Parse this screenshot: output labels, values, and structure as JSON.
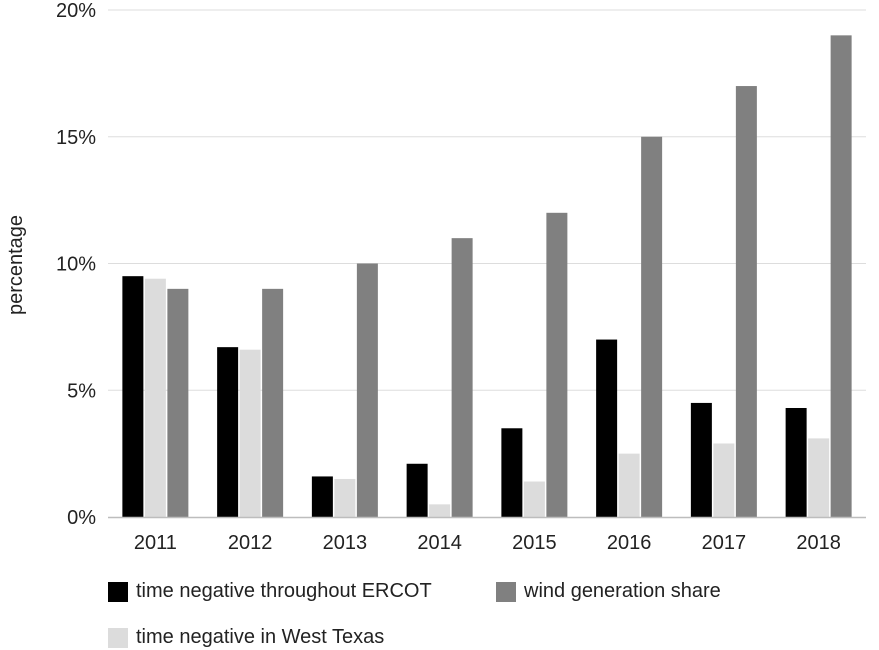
{
  "chart_data": {
    "type": "bar",
    "categories": [
      "2011",
      "2012",
      "2013",
      "2014",
      "2015",
      "2016",
      "2017",
      "2018"
    ],
    "series": [
      {
        "name": "time negative throughout ERCOT",
        "color": "#000000",
        "values": [
          9.5,
          6.7,
          1.6,
          2.1,
          3.5,
          7.0,
          4.5,
          4.3
        ]
      },
      {
        "name": "time negative in West Texas",
        "color": "#dcdcdc",
        "values": [
          9.4,
          6.6,
          1.5,
          0.5,
          1.4,
          2.5,
          2.9,
          3.1
        ]
      },
      {
        "name": "wind generation share",
        "color": "#808080",
        "values": [
          9.0,
          9.0,
          10.0,
          11.0,
          12.0,
          15.0,
          17.0,
          19.0
        ]
      }
    ],
    "ylabel": "percentage",
    "yticks": [
      "0%",
      "5%",
      "10%",
      "15%",
      "20%"
    ],
    "ylim": [
      0,
      20
    ],
    "grid": true,
    "legend_position": "bottom"
  }
}
